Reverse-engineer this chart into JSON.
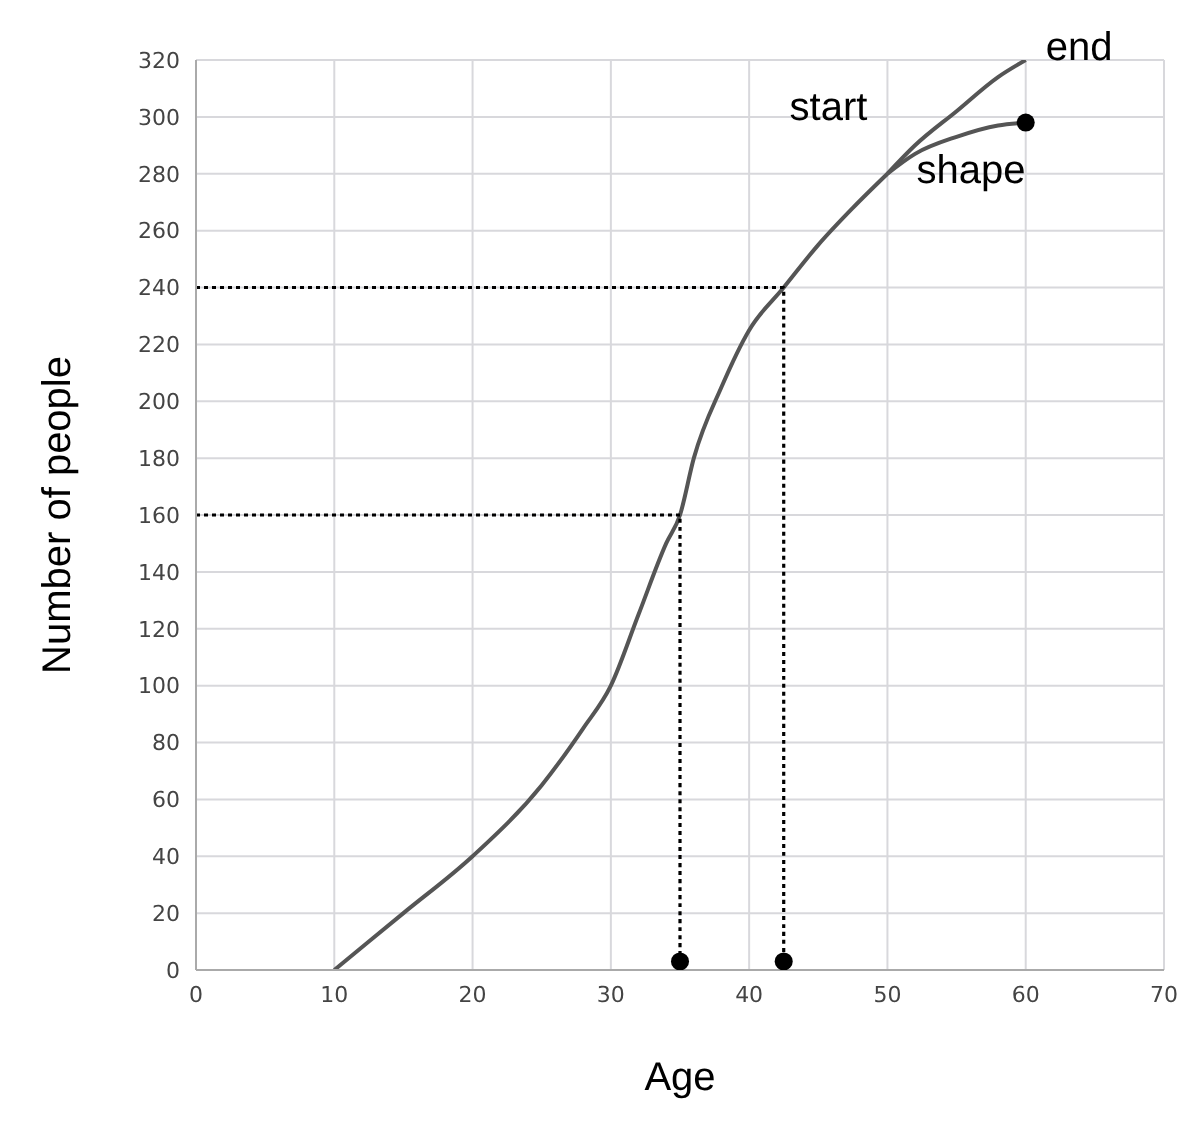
{
  "chart_data": {
    "type": "line",
    "xlabel": "Age",
    "ylabel": "Number of people",
    "xlim": [
      0,
      70
    ],
    "ylim": [
      0,
      320
    ],
    "xticks": [
      0,
      10,
      20,
      30,
      40,
      50,
      60,
      70
    ],
    "yticks": [
      0,
      20,
      40,
      60,
      80,
      100,
      120,
      140,
      160,
      180,
      200,
      220,
      240,
      260,
      280,
      300,
      320
    ],
    "grid": true,
    "series": [
      {
        "color": "#555555",
        "line_style": "solid",
        "x": [
          10,
          15,
          20,
          25,
          28,
          30,
          32,
          34,
          35,
          36,
          38,
          40,
          42.5,
          45,
          47.5,
          50
        ],
        "values": [
          0,
          20,
          40,
          65,
          85,
          100,
          125,
          150,
          160,
          180,
          205,
          225,
          240,
          255,
          268,
          280
        ]
      },
      {
        "color": "#555555",
        "line_style": "solid",
        "x": [
          50,
          52,
          55,
          58,
          60
        ],
        "values": [
          280,
          290,
          302,
          314,
          320
        ]
      },
      {
        "color": "#555555",
        "line_style": "solid",
        "x": [
          50,
          52,
          55,
          58,
          60
        ],
        "values": [
          280,
          287,
          293,
          297,
          298
        ]
      },
      {
        "color": "#000000",
        "line_style": "dotted",
        "x": [
          0,
          42.5,
          42.5
        ],
        "values": [
          240,
          240,
          3
        ]
      },
      {
        "color": "#000000",
        "line_style": "dotted",
        "x": [
          0,
          35,
          35
        ],
        "values": [
          160,
          160,
          3
        ]
      },
      {
        "type": "scatter",
        "color": "#000000",
        "marker": "circle",
        "x": [
          35,
          42.5,
          60
        ],
        "values": [
          3,
          3,
          298
        ]
      }
    ],
    "annotations": [
      {
        "text": "start",
        "x": 50,
        "y": 280
      },
      {
        "text": "shape",
        "x": 55,
        "y": 293
      },
      {
        "text": "end",
        "x": 60,
        "y": 320
      }
    ]
  }
}
